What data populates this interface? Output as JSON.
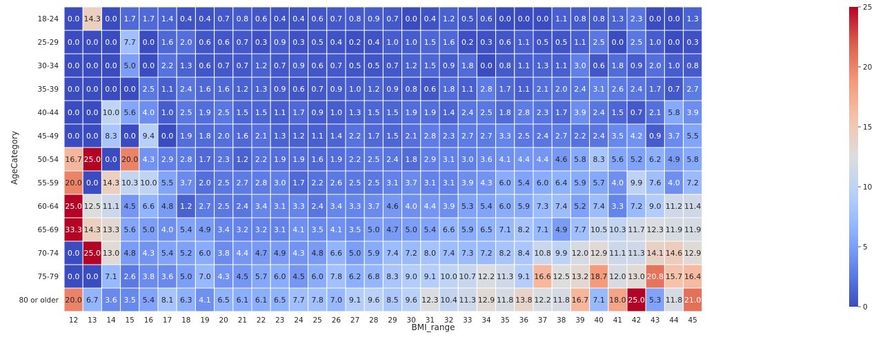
{
  "chart_data": {
    "type": "heatmap",
    "xlabel": "BMI_range",
    "ylabel": "AgeCategory",
    "colormap": "coolwarm",
    "vmin": 0,
    "vmax": 25,
    "colorbar_ticks": [
      "0",
      "5",
      "10",
      "15",
      "20",
      "25"
    ],
    "x": [
      "12",
      "13",
      "14",
      "15",
      "16",
      "17",
      "18",
      "19",
      "20",
      "21",
      "22",
      "23",
      "24",
      "25",
      "26",
      "27",
      "28",
      "29",
      "30",
      "31",
      "32",
      "33",
      "34",
      "35",
      "36",
      "37",
      "38",
      "39",
      "40",
      "41",
      "42",
      "43",
      "44",
      "45"
    ],
    "y": [
      "18-24",
      "25-29",
      "30-34",
      "35-39",
      "40-44",
      "45-49",
      "50-54",
      "55-59",
      "60-64",
      "65-69",
      "70-74",
      "75-79",
      "80 or older"
    ],
    "values": [
      [
        0.0,
        14.3,
        0.0,
        1.7,
        1.7,
        1.4,
        0.4,
        0.4,
        0.7,
        0.8,
        0.6,
        0.4,
        0.4,
        0.6,
        0.7,
        0.8,
        0.9,
        0.7,
        0.0,
        0.4,
        1.2,
        0.5,
        0.6,
        0.0,
        0.0,
        0.0,
        1.1,
        0.8,
        0.8,
        1.3,
        2.3,
        0.0,
        0.0,
        1.3
      ],
      [
        0.0,
        0.0,
        0.0,
        7.7,
        0.0,
        1.6,
        2.0,
        0.6,
        0.6,
        0.7,
        0.3,
        0.9,
        0.3,
        0.5,
        0.4,
        0.2,
        0.4,
        1.0,
        1.0,
        1.5,
        1.6,
        0.2,
        0.3,
        0.6,
        1.1,
        0.5,
        0.5,
        1.1,
        2.5,
        0.0,
        2.5,
        1.0,
        0.0,
        0.3
      ],
      [
        0.0,
        0.0,
        0.0,
        5.0,
        0.0,
        2.2,
        1.3,
        0.6,
        0.7,
        0.7,
        1.2,
        0.7,
        0.9,
        0.6,
        0.7,
        0.5,
        0.5,
        0.7,
        1.2,
        1.5,
        0.9,
        1.8,
        0.0,
        0.8,
        1.1,
        1.3,
        1.1,
        3.0,
        0.6,
        1.8,
        0.9,
        2.0,
        1.0,
        0.8
      ],
      [
        0.0,
        0.0,
        0.0,
        0.0,
        2.5,
        1.1,
        2.4,
        1.6,
        1.6,
        1.2,
        1.3,
        0.9,
        0.6,
        0.7,
        0.9,
        1.0,
        1.2,
        0.9,
        0.8,
        0.6,
        1.8,
        1.1,
        2.8,
        1.7,
        1.1,
        2.1,
        2.0,
        2.4,
        3.1,
        2.6,
        2.4,
        1.7,
        0.7,
        2.7
      ],
      [
        0.0,
        0.0,
        10.0,
        5.6,
        4.0,
        1.0,
        2.5,
        1.9,
        2.5,
        1.5,
        1.5,
        1.1,
        1.7,
        0.9,
        1.0,
        1.3,
        1.5,
        1.5,
        1.9,
        1.9,
        1.4,
        2.4,
        2.5,
        1.8,
        2.8,
        2.3,
        1.7,
        3.9,
        2.4,
        1.5,
        0.7,
        2.1,
        5.8,
        3.9
      ],
      [
        0.0,
        0.0,
        8.3,
        0.0,
        9.4,
        0.0,
        1.9,
        1.8,
        2.0,
        1.6,
        2.1,
        1.3,
        1.2,
        1.1,
        1.4,
        2.2,
        1.7,
        1.5,
        2.1,
        2.8,
        2.3,
        2.7,
        2.7,
        3.3,
        2.5,
        2.4,
        2.7,
        2.2,
        2.4,
        3.5,
        4.2,
        0.9,
        3.7,
        5.5
      ],
      [
        16.7,
        25.0,
        0.0,
        20.0,
        4.3,
        2.9,
        2.8,
        1.7,
        2.3,
        1.2,
        2.2,
        1.9,
        1.9,
        1.6,
        1.9,
        2.2,
        2.5,
        2.4,
        1.8,
        2.9,
        3.1,
        3.0,
        3.6,
        4.1,
        4.4,
        4.4,
        4.6,
        5.8,
        8.3,
        5.6,
        5.2,
        6.2,
        4.9,
        5.8
      ],
      [
        20.0,
        0.0,
        14.3,
        10.3,
        10.0,
        5.5,
        3.7,
        2.0,
        2.5,
        2.7,
        2.8,
        3.0,
        1.7,
        2.2,
        2.6,
        2.5,
        2.5,
        3.1,
        3.7,
        3.1,
        3.1,
        3.9,
        4.3,
        6.0,
        5.4,
        6.0,
        6.4,
        5.9,
        5.7,
        4.0,
        9.9,
        7.6,
        4.0,
        7.2
      ],
      [
        25.0,
        12.5,
        11.1,
        4.5,
        6.6,
        4.8,
        1.2,
        2.7,
        2.5,
        2.4,
        3.4,
        3.1,
        3.3,
        2.4,
        3.4,
        3.3,
        3.7,
        4.6,
        4.0,
        4.4,
        3.9,
        5.3,
        5.4,
        6.0,
        5.9,
        7.3,
        7.4,
        5.2,
        7.4,
        3.3,
        7.2,
        9.0,
        11.2,
        11.4
      ],
      [
        33.3,
        14.3,
        13.3,
        5.6,
        5.0,
        4.0,
        5.4,
        4.9,
        3.4,
        3.2,
        3.2,
        3.1,
        4.1,
        3.5,
        4.1,
        3.5,
        5.0,
        4.7,
        5.0,
        5.4,
        6.6,
        5.9,
        6.5,
        7.1,
        8.2,
        7.1,
        4.9,
        7.7,
        10.5,
        10.3,
        11.7,
        12.3,
        11.9,
        11.9
      ],
      [
        0.0,
        25.0,
        13.0,
        4.8,
        4.3,
        5.4,
        5.2,
        6.0,
        3.8,
        4.4,
        4.7,
        4.9,
        4.3,
        4.8,
        6.6,
        5.0,
        5.9,
        7.4,
        7.2,
        8.0,
        7.4,
        7.3,
        7.2,
        8.2,
        8.4,
        10.8,
        9.9,
        12.0,
        12.9,
        11.1,
        11.3,
        14.1,
        14.6,
        12.9
      ],
      [
        0.0,
        0.0,
        7.1,
        2.6,
        3.8,
        3.6,
        5.0,
        7.0,
        4.3,
        4.5,
        5.7,
        6.0,
        4.5,
        6.0,
        7.8,
        6.2,
        6.8,
        8.3,
        9.0,
        9.1,
        10.0,
        10.7,
        12.2,
        11.3,
        9.1,
        16.6,
        12.5,
        13.2,
        18.7,
        12.0,
        13.0,
        20.8,
        15.7,
        16.4
      ],
      [
        20.0,
        6.7,
        3.6,
        3.5,
        5.4,
        8.1,
        6.3,
        4.1,
        6.5,
        6.1,
        6.1,
        6.5,
        7.7,
        7.8,
        7.0,
        9.1,
        9.6,
        8.5,
        9.6,
        12.3,
        10.4,
        11.3,
        12.9,
        11.8,
        13.8,
        12.2,
        11.8,
        16.7,
        7.1,
        18.0,
        25.0,
        5.3,
        11.8,
        21.0
      ]
    ]
  }
}
